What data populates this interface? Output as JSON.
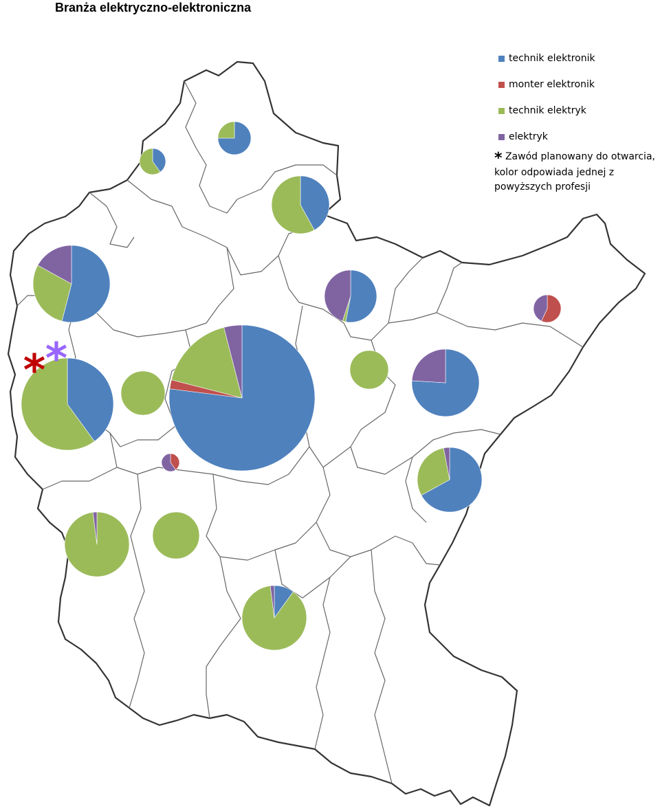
{
  "title": "Branża elektryczno-elektroniczna",
  "legend": {
    "items": [
      {
        "label": "technik elektronik",
        "color": "#4F81BD"
      },
      {
        "label": "monter elektronik",
        "color": "#C0504D"
      },
      {
        "label": "technik elektryk",
        "color": "#9BBB59"
      },
      {
        "label": "elektryk",
        "color": "#8064A2"
      }
    ],
    "note_symbol": "*",
    "note": "Zawód planowany do otwarcia, kolor odpowiada jednej z powyższych profesji"
  },
  "markers": [
    {
      "symbol": "*",
      "color": "#C00000"
    },
    {
      "symbol": "*",
      "color": "#9966FF"
    }
  ],
  "chart_data": {
    "type": "pie",
    "series_order": [
      "technik elektronik",
      "monter elektronik",
      "technik elektryk",
      "elektryk"
    ],
    "pies": [
      {
        "id": "north-west-small",
        "values": [
          0.4,
          0,
          0.6,
          0
        ]
      },
      {
        "id": "north",
        "values": [
          0.75,
          0,
          0.25,
          0
        ]
      },
      {
        "id": "north-central",
        "values": [
          0.42,
          0,
          0.58,
          0
        ]
      },
      {
        "id": "west-upper",
        "values": [
          0.54,
          0,
          0.29,
          0.17
        ]
      },
      {
        "id": "central-north",
        "values": [
          0.53,
          0,
          0.02,
          0.45
        ]
      },
      {
        "id": "east",
        "values": [
          0,
          0.57,
          0,
          0.43
        ]
      },
      {
        "id": "west",
        "values": [
          0.4,
          0,
          0.6,
          0
        ]
      },
      {
        "id": "west-central",
        "values": [
          0,
          0,
          1,
          0
        ]
      },
      {
        "id": "central",
        "values": [
          0.77,
          0.02,
          0.17,
          0.04
        ]
      },
      {
        "id": "central-east-small",
        "values": [
          0,
          0,
          1,
          0
        ]
      },
      {
        "id": "east-central",
        "values": [
          0.76,
          0,
          0,
          0.24
        ]
      },
      {
        "id": "central-small",
        "values": [
          0,
          0.4,
          0,
          0.6
        ]
      },
      {
        "id": "south-east",
        "values": [
          0.67,
          0,
          0.3,
          0.03
        ]
      },
      {
        "id": "south-west",
        "values": [
          0,
          0,
          0.98,
          0.02
        ]
      },
      {
        "id": "south-west-central",
        "values": [
          0,
          0,
          1,
          0
        ]
      },
      {
        "id": "south",
        "values": [
          0.1,
          0,
          0.88,
          0.02
        ]
      }
    ]
  }
}
